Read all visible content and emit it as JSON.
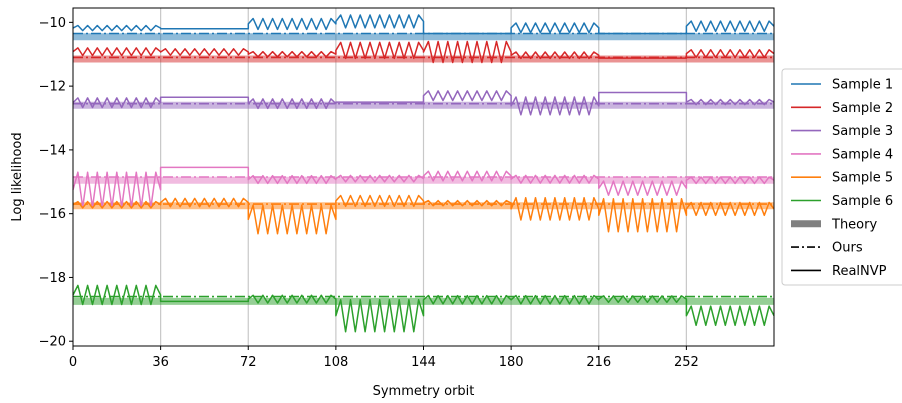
{
  "chart_data": {
    "type": "line",
    "title": "",
    "xlabel": "Symmetry orbit",
    "ylabel": "Log likelihood",
    "xlim": [
      0,
      288
    ],
    "ylim": [
      -20.15,
      -9.55
    ],
    "xticks": [
      0,
      36,
      72,
      108,
      144,
      180,
      216,
      252
    ],
    "xtick_labels": [
      "0",
      "36",
      "72",
      "108",
      "144",
      "180",
      "216",
      "252"
    ],
    "yticks": [
      -10,
      -12,
      -14,
      -16,
      -18,
      -20
    ],
    "ytick_labels": [
      "−10",
      "−12",
      "−14",
      "−16",
      "−18",
      "−20"
    ],
    "vertical_grid_at": [
      36,
      72,
      108,
      144,
      180,
      216,
      252
    ],
    "orbit_width": 36,
    "legend_position": "right, outside axes",
    "legend": [
      {
        "label": "Sample 1",
        "style": "line",
        "color": "#1f77b4"
      },
      {
        "label": "Sample 2",
        "style": "line",
        "color": "#d62728"
      },
      {
        "label": "Sample 3",
        "style": "line",
        "color": "#9467bd"
      },
      {
        "label": "Sample 4",
        "style": "line",
        "color": "#e377c2"
      },
      {
        "label": "Sample 5",
        "style": "line",
        "color": "#ff7f0e"
      },
      {
        "label": "Sample 6",
        "style": "line",
        "color": "#2ca02c"
      },
      {
        "label": "Theory",
        "style": "thick",
        "color": "#808080"
      },
      {
        "label": "Ours",
        "style": "dashdot",
        "color": "#000000"
      },
      {
        "label": "RealNVP",
        "style": "line",
        "color": "#000000"
      }
    ],
    "series": [
      {
        "name": "Sample 1",
        "color": "#1f77b4",
        "theory": -10.45,
        "ours": -10.35,
        "realnvp_orbits": [
          {
            "kind": "osc",
            "center": -10.18,
            "amp": 0.08
          },
          {
            "kind": "flat",
            "value": -10.2
          },
          {
            "kind": "osc",
            "center": -10.05,
            "amp": 0.17
          },
          {
            "kind": "osc",
            "center": -9.97,
            "amp": 0.2
          },
          {
            "kind": "flat",
            "value": -10.35
          },
          {
            "kind": "osc",
            "center": -10.17,
            "amp": 0.15
          },
          {
            "kind": "flat",
            "value": -10.35
          },
          {
            "kind": "osc",
            "center": -10.12,
            "amp": 0.16
          }
        ]
      },
      {
        "name": "Sample 2",
        "color": "#d62728",
        "theory": -11.15,
        "ours": -11.1,
        "realnvp_orbits": [
          {
            "kind": "osc",
            "center": -10.92,
            "amp": 0.12
          },
          {
            "kind": "osc",
            "center": -10.93,
            "amp": 0.1
          },
          {
            "kind": "osc",
            "center": -11.0,
            "amp": 0.08
          },
          {
            "kind": "osc",
            "center": -10.88,
            "amp": 0.25
          },
          {
            "kind": "osc",
            "center": -10.93,
            "amp": 0.33
          },
          {
            "kind": "osc",
            "center": -11.03,
            "amp": 0.1
          },
          {
            "kind": "flat",
            "value": -11.12
          },
          {
            "kind": "osc",
            "center": -10.98,
            "amp": 0.12
          }
        ]
      },
      {
        "name": "Sample 3",
        "color": "#9467bd",
        "theory": -12.6,
        "ours": -12.55,
        "realnvp_orbits": [
          {
            "kind": "osc",
            "center": -12.52,
            "amp": 0.15
          },
          {
            "kind": "flat",
            "value": -12.35
          },
          {
            "kind": "osc",
            "center": -12.55,
            "amp": 0.15
          },
          {
            "kind": "flat",
            "value": -12.5
          },
          {
            "kind": "osc",
            "center": -12.3,
            "amp": 0.15
          },
          {
            "kind": "osc",
            "center": -12.62,
            "amp": 0.28
          },
          {
            "kind": "flat",
            "value": -12.2
          },
          {
            "kind": "osc",
            "center": -12.5,
            "amp": 0.08
          }
        ]
      },
      {
        "name": "Sample 4",
        "color": "#e377c2",
        "theory": -14.95,
        "ours": -14.85,
        "realnvp_orbits": [
          {
            "kind": "osc",
            "center": -15.25,
            "amp": 0.55
          },
          {
            "kind": "flat",
            "value": -14.55
          },
          {
            "kind": "osc",
            "center": -14.93,
            "amp": 0.12
          },
          {
            "kind": "osc",
            "center": -14.9,
            "amp": 0.1
          },
          {
            "kind": "osc",
            "center": -14.82,
            "amp": 0.15
          },
          {
            "kind": "osc",
            "center": -14.92,
            "amp": 0.12
          },
          {
            "kind": "osc",
            "center": -15.2,
            "amp": 0.22
          },
          {
            "kind": "osc",
            "center": -14.95,
            "amp": 0.1
          }
        ]
      },
      {
        "name": "Sample 5",
        "color": "#ff7f0e",
        "theory": -15.75,
        "ours": -15.7,
        "realnvp_orbits": [
          {
            "kind": "osc",
            "center": -15.72,
            "amp": 0.1
          },
          {
            "kind": "osc",
            "center": -15.65,
            "amp": 0.13
          },
          {
            "kind": "osc",
            "center": -16.18,
            "amp": 0.45
          },
          {
            "kind": "osc",
            "center": -15.6,
            "amp": 0.17
          },
          {
            "kind": "osc",
            "center": -15.67,
            "amp": 0.08
          },
          {
            "kind": "osc",
            "center": -15.85,
            "amp": 0.35
          },
          {
            "kind": "osc",
            "center": -16.05,
            "amp": 0.52
          },
          {
            "kind": "osc",
            "center": -15.85,
            "amp": 0.2
          }
        ]
      },
      {
        "name": "Sample 6",
        "color": "#2ca02c",
        "theory": -18.75,
        "ours": -18.6,
        "realnvp_orbits": [
          {
            "kind": "osc",
            "center": -18.55,
            "amp": 0.3
          },
          {
            "kind": "flat",
            "value": -18.75
          },
          {
            "kind": "osc",
            "center": -18.68,
            "amp": 0.12
          },
          {
            "kind": "osc",
            "center": -19.2,
            "amp": 0.5
          },
          {
            "kind": "osc",
            "center": -18.7,
            "amp": 0.13
          },
          {
            "kind": "osc",
            "center": -18.7,
            "amp": 0.13
          },
          {
            "kind": "osc",
            "center": -18.68,
            "amp": 0.1
          },
          {
            "kind": "osc",
            "center": -19.2,
            "amp": 0.3
          }
        ]
      }
    ]
  }
}
